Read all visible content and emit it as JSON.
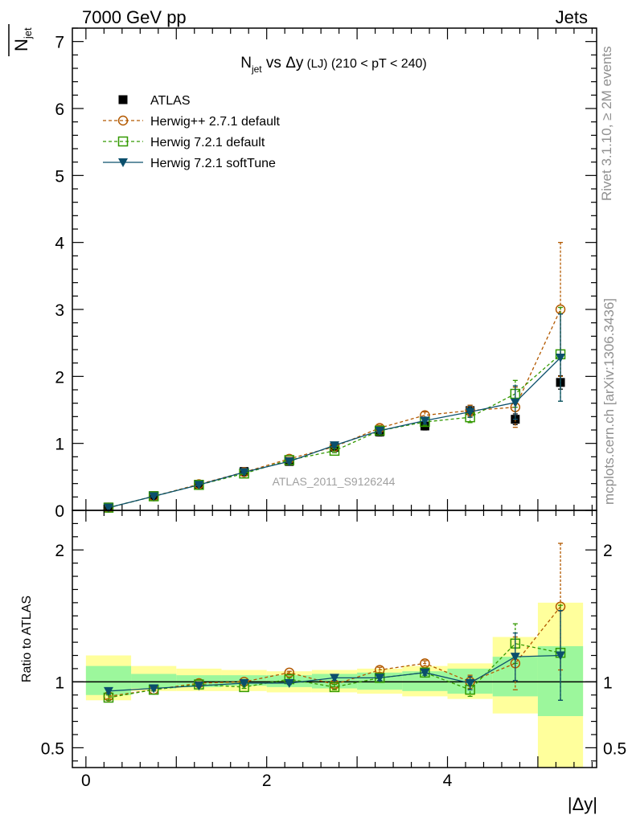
{
  "header": {
    "left": "7000 GeV pp",
    "right": "Jets"
  },
  "side_labels": {
    "top": "Rivet 3.1.10, ≥ 2M events",
    "bottom": "mcplots.cern.ch [arXiv:1306.3436]"
  },
  "watermark": "ATLAS_2011_S9126244",
  "main_ylabel": {
    "base": "N",
    "sub": "jet"
  },
  "ratio_ylabel": "Ratio to ATLAS",
  "xlabel": "|Δy|",
  "title": {
    "base": "N",
    "sub": "jet",
    "vs": " vs Δy",
    "small": " (LJ)",
    "rest": " (210 < pT < 240)"
  },
  "colors": {
    "atlas": "#000000",
    "herwigpp": "#b35900",
    "herwig721": "#339900",
    "softtune": "#0b4f6c",
    "band_inner": "#9cf79c",
    "band_outer": "#ffff9c"
  },
  "chart_data": {
    "type": "line",
    "x": [
      0.25,
      0.75,
      1.25,
      1.75,
      2.25,
      2.75,
      3.25,
      3.75,
      4.25,
      4.75,
      5.25
    ],
    "x_edges": [
      0.0,
      0.5,
      1.0,
      1.5,
      2.0,
      2.5,
      3.0,
      3.5,
      4.0,
      4.5,
      5.0,
      5.5
    ],
    "xlim": [
      -0.15,
      5.65
    ],
    "main": {
      "ylim": [
        0,
        7.2
      ],
      "yticks": [
        "0",
        "1",
        "2",
        "3",
        "4",
        "5",
        "6",
        "7"
      ],
      "ytick_values": [
        0,
        1,
        2,
        3,
        4,
        5,
        6,
        7
      ],
      "series": [
        {
          "name": "ATLAS",
          "key": "atlas",
          "marker": "square-filled",
          "values": [
            0.05,
            0.22,
            0.39,
            0.58,
            0.73,
            0.94,
            1.17,
            1.26,
            1.49,
            1.36,
            1.91
          ],
          "err": [
            0.02,
            0.02,
            0.03,
            0.03,
            0.04,
            0.05,
            0.06,
            0.06,
            0.08,
            0.08,
            0.1
          ]
        },
        {
          "name": "Herwig++ 2.7.1 default",
          "key": "herwigpp",
          "marker": "circle-open",
          "dash": true,
          "values": [
            0.04,
            0.21,
            0.39,
            0.57,
            0.77,
            0.95,
            1.23,
            1.42,
            1.49,
            1.54,
            3.0
          ],
          "err": [
            0.005,
            0.01,
            0.01,
            0.015,
            0.02,
            0.03,
            0.04,
            0.05,
            0.08,
            0.3,
            1.0
          ]
        },
        {
          "name": "Herwig 7.2.1 default",
          "key": "herwig721",
          "marker": "square-open",
          "dash": true,
          "values": [
            0.04,
            0.21,
            0.38,
            0.55,
            0.75,
            0.89,
            1.19,
            1.32,
            1.39,
            1.74,
            2.33
          ],
          "err": [
            0.005,
            0.01,
            0.01,
            0.015,
            0.02,
            0.03,
            0.04,
            0.05,
            0.08,
            0.2,
            0.7
          ]
        },
        {
          "name": "Herwig 7.2.1 softTune",
          "key": "softtune",
          "marker": "triangle-down",
          "dash": false,
          "values": [
            0.04,
            0.21,
            0.38,
            0.57,
            0.73,
            0.97,
            1.19,
            1.34,
            1.47,
            1.61,
            2.28
          ],
          "err": [
            0.005,
            0.01,
            0.01,
            0.015,
            0.02,
            0.03,
            0.04,
            0.05,
            0.08,
            0.25,
            0.65
          ]
        }
      ]
    },
    "ratio": {
      "ylim": [
        0.35,
        2.3
      ],
      "yticks": [
        "0.5",
        "1",
        "2"
      ],
      "ytick_values": [
        0.5,
        1,
        2
      ],
      "band_inner": [
        [
          0.9,
          1.12
        ],
        [
          0.95,
          1.06
        ],
        [
          0.96,
          1.05
        ],
        [
          0.97,
          1.05
        ],
        [
          0.96,
          1.05
        ],
        [
          0.95,
          1.06
        ],
        [
          0.94,
          1.07
        ],
        [
          0.93,
          1.08
        ],
        [
          0.91,
          1.1
        ],
        [
          0.89,
          1.19
        ],
        [
          0.74,
          1.27
        ]
      ],
      "band_outer": [
        [
          0.86,
          1.2
        ],
        [
          0.93,
          1.12
        ],
        [
          0.93,
          1.1
        ],
        [
          0.93,
          1.09
        ],
        [
          0.92,
          1.08
        ],
        [
          0.92,
          1.09
        ],
        [
          0.91,
          1.1
        ],
        [
          0.89,
          1.12
        ],
        [
          0.87,
          1.14
        ],
        [
          0.76,
          1.34
        ],
        [
          0.35,
          1.6
        ]
      ],
      "series": [
        {
          "name": "Herwig++ 2.7.1 default",
          "key": "herwigpp",
          "marker": "circle-open",
          "dash": true,
          "values": [
            0.89,
            0.94,
            0.99,
            1.0,
            1.07,
            0.98,
            1.09,
            1.14,
            1.0,
            1.14,
            1.57
          ],
          "err": [
            0.02,
            0.01,
            0.01,
            0.01,
            0.01,
            0.02,
            0.02,
            0.02,
            0.05,
            0.2,
            0.48
          ]
        },
        {
          "name": "Herwig 7.2.1 default",
          "key": "herwig721",
          "marker": "square-open",
          "dash": true,
          "values": [
            0.88,
            0.94,
            0.98,
            0.96,
            1.02,
            0.96,
            1.03,
            1.07,
            0.94,
            1.29,
            1.22
          ],
          "err": [
            0.02,
            0.01,
            0.01,
            0.01,
            0.01,
            0.02,
            0.02,
            0.02,
            0.05,
            0.15,
            0.36
          ]
        },
        {
          "name": "Herwig 7.2.1 softTune",
          "key": "softtune",
          "marker": "triangle-down",
          "dash": false,
          "values": [
            0.93,
            0.95,
            0.97,
            0.99,
            0.99,
            1.03,
            1.03,
            1.07,
            0.99,
            1.19,
            1.2
          ],
          "err": [
            0.02,
            0.01,
            0.01,
            0.01,
            0.01,
            0.02,
            0.02,
            0.02,
            0.05,
            0.18,
            0.34
          ]
        }
      ]
    },
    "xticks": [
      "0",
      "2",
      "4"
    ],
    "xtick_values": [
      0,
      2,
      4
    ]
  }
}
